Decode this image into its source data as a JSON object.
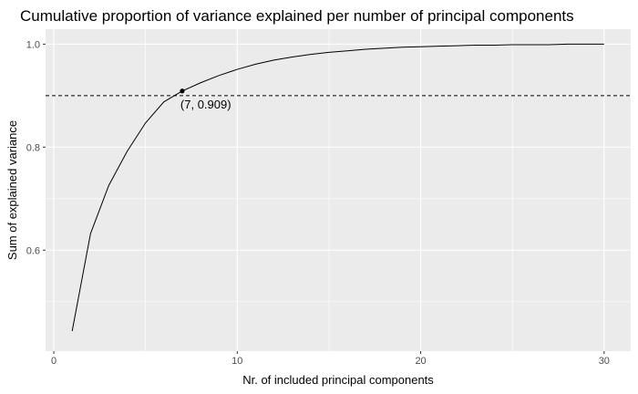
{
  "chart_data": {
    "type": "line",
    "title": "Cumulative proportion of variance explained per number of principal components",
    "xlabel": "Nr. of included principal components",
    "ylabel": "Sum of explained variance",
    "xlim": [
      -0.45,
      31.45
    ],
    "ylim": [
      0.404,
      1.029
    ],
    "x_ticks": [
      0,
      10,
      20,
      30
    ],
    "x_tick_labels": [
      "0",
      "10",
      "20",
      "30"
    ],
    "y_ticks": [
      0.6,
      0.8,
      1.0
    ],
    "y_tick_labels": [
      "0.6",
      "0.8",
      "1.0"
    ],
    "grid": true,
    "background": "#ebebeb",
    "grid_color": "#ffffff",
    "line_color": "#000000",
    "series": [
      {
        "x": [
          1,
          2,
          3,
          4,
          5,
          6,
          7,
          8,
          9,
          10,
          11,
          12,
          13,
          14,
          15,
          16,
          17,
          18,
          19,
          20,
          21,
          22,
          23,
          24,
          25,
          26,
          27,
          28,
          29,
          30
        ],
        "values": [
          0.443,
          0.632,
          0.726,
          0.792,
          0.847,
          0.888,
          0.909,
          0.925,
          0.939,
          0.951,
          0.961,
          0.969,
          0.975,
          0.98,
          0.984,
          0.987,
          0.99,
          0.992,
          0.994,
          0.995,
          0.996,
          0.997,
          0.998,
          0.998,
          0.999,
          0.999,
          0.999,
          1.0,
          1.0,
          1.0
        ]
      }
    ],
    "reference_line": {
      "y": 0.9,
      "style": "dashed",
      "color": "#000000"
    },
    "highlight_point": {
      "x": 7,
      "y": 0.909,
      "label": "(7, 0.909)"
    }
  }
}
